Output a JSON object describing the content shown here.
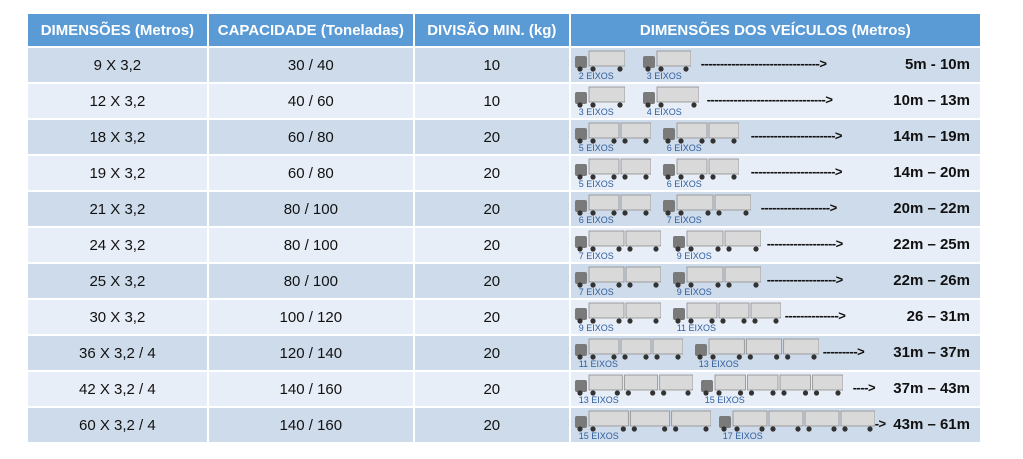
{
  "headers": [
    "DIMENSÕES (Metros)",
    "CAPACIDADE (Toneladas)",
    "DIVISÃO MIN. (kg)",
    "DIMENSÕES DOS VEÍCULOS (Metros)"
  ],
  "rows": [
    {
      "dim": "9 X 3,2",
      "cap": "30 / 40",
      "div": "10",
      "veh1": "2 EIXOS",
      "veh2": "3 EIXOS",
      "range": "5m - 10m",
      "arrow": "------------------------------->"
    },
    {
      "dim": "12 X 3,2",
      "cap": "40 / 60",
      "div": "10",
      "veh1": "3 EIXOS",
      "veh2": "4 EIXOS",
      "range": "10m – 13m",
      "arrow": "------------------------------->"
    },
    {
      "dim": "18 X 3,2",
      "cap": "60 / 80",
      "div": "20",
      "veh1": "5 EIXOS",
      "veh2": "6 EIXOS",
      "range": "14m – 19m",
      "arrow": "---------------------->"
    },
    {
      "dim": "19 X 3,2",
      "cap": "60 / 80",
      "div": "20",
      "veh1": "5 EIXOS",
      "veh2": "6 EIXOS",
      "range": "14m – 20m",
      "arrow": "---------------------->"
    },
    {
      "dim": "21 X 3,2",
      "cap": "80 / 100",
      "div": "20",
      "veh1": "6 EIXOS",
      "veh2": "7 EIXOS",
      "range": "20m – 22m",
      "arrow": "------------------>"
    },
    {
      "dim": "24 X 3,2",
      "cap": "80 / 100",
      "div": "20",
      "veh1": "7 EIXOS",
      "veh2": "9 EIXOS",
      "range": "22m – 25m",
      "arrow": "------------------>"
    },
    {
      "dim": "25 X 3,2",
      "cap": "80 / 100",
      "div": "20",
      "veh1": "7 EIXOS",
      "veh2": "9 EIXOS",
      "range": "22m – 26m",
      "arrow": "------------------>"
    },
    {
      "dim": "30 X 3,2",
      "cap": "100 / 120",
      "div": "20",
      "veh1": "9 EIXOS",
      "veh2": "11 EIXOS",
      "range": "26 – 31m",
      "arrow": "-------------->"
    },
    {
      "dim": "36 X 3,2 / 4",
      "cap": "120 / 140",
      "div": "20",
      "veh1": "11 EIXOS",
      "veh2": "13 EIXOS",
      "range": "31m – 37m",
      "arrow": "--------->"
    },
    {
      "dim": "42 X 3,2 / 4",
      "cap": "140 / 160",
      "div": "20",
      "veh1": "13 EIXOS",
      "veh2": "15 EIXOS",
      "range": "37m – 43m",
      "arrow": "---->"
    },
    {
      "dim": "60 X 3,2 / 4",
      "cap": "140 / 160",
      "div": "20",
      "veh1": "15 EIXOS",
      "veh2": "17 EIXOS",
      "range": "43m – 61m",
      "arrow": "->"
    }
  ],
  "colors": {
    "header_bg": "#5b9bd5",
    "row_dark": "#cedbeb",
    "row_light": "#e8eef7",
    "eixos_label": "#2e5e9e"
  },
  "icon": "truck-icon"
}
